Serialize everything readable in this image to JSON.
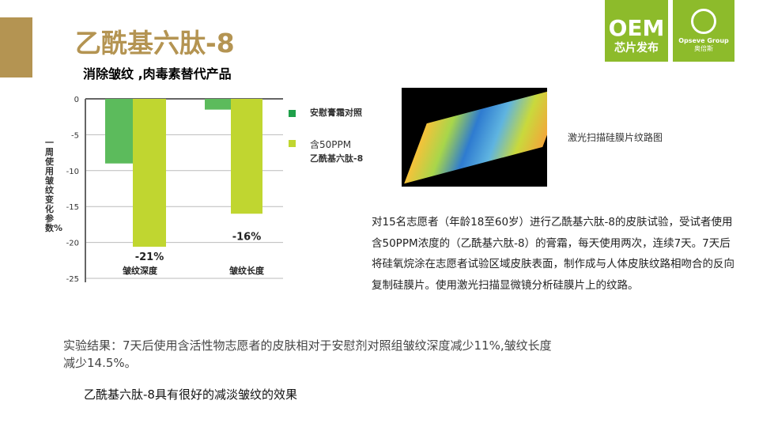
{
  "header": {
    "title": "乙酰基六肽-8",
    "subtitle": "消除皱纹 ,肉毒素替代产品"
  },
  "logos": {
    "oem": "OEM",
    "oem_sub": "芯片发布",
    "group": "Opseve Group",
    "group_cn": "奥倍斯"
  },
  "chart_data": {
    "type": "bar",
    "categories": [
      "皱纹深度",
      "皱纹长度"
    ],
    "series": [
      {
        "name": "安慰膏霜对照",
        "values": [
          -9,
          -1.5
        ],
        "color": "#5cbb5c"
      },
      {
        "name": "含50PPM 乙酰基六肽-8",
        "values": [
          -20.6,
          -16
        ],
        "color": "#c0d630"
      }
    ],
    "data_labels": [
      "-21%",
      "-16%"
    ],
    "ylabel": "一周使用皱纹变化参数%",
    "ylim": [
      -25,
      0
    ],
    "yticks": [
      0,
      -5,
      -10,
      -15,
      -20,
      -25
    ],
    "grid": true,
    "legend_position": "right",
    "legend": {
      "line1": "安慰膏霜对照",
      "line2a": "含50PPM",
      "line2b": "乙酰基六肽-8",
      "color1": "#1fa04a"
    }
  },
  "image": {
    "caption": "激光扫描硅膜片纹路图"
  },
  "body": {
    "description": "对15名志愿者（年龄18至60岁）进行乙酰基六肽-8的皮肤试验，受试者使用含50PPM浓度的（乙酰基六肽-8）的膏霜，每天使用两次，连续7天。7天后将硅氧烷涂在志愿者试验区域皮肤表面，制作成与人体皮肤纹路相吻合的反向复制硅膜片。使用激光扫描显微镜分析硅膜片上的纹路。",
    "result": "实验结果：7天后使用含活性物志愿者的皮肤相对于安慰剂对照组皱纹深度减少11%,皱纹长度减少14.5%。",
    "conclusion": "乙酰基六肽-8具有很好的减淡皱纹的效果"
  }
}
